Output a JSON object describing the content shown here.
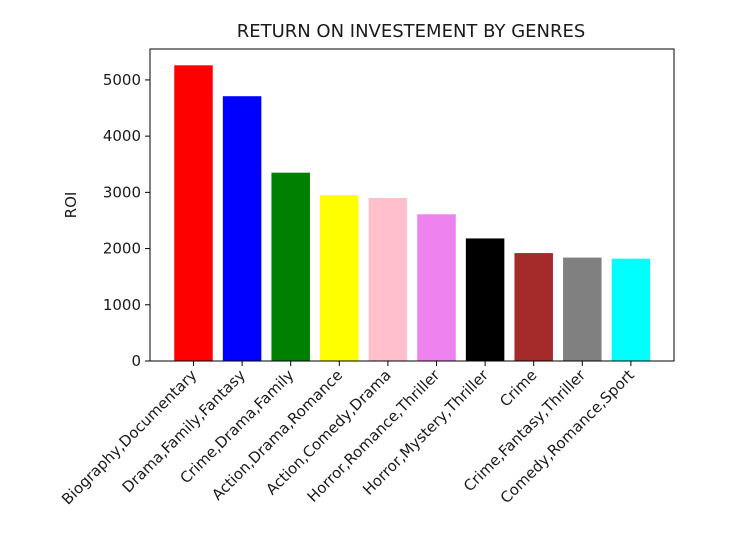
{
  "chart_data": {
    "type": "bar",
    "title": "RETURN ON INVESTEMENT BY GENRES",
    "xlabel": "",
    "ylabel": "ROI",
    "ylim": [
      0,
      5550
    ],
    "yticks": [
      0,
      1000,
      2000,
      3000,
      4000,
      5000
    ],
    "grid": false,
    "legend": "none",
    "categories": [
      "Biography,Documentary",
      "Drama,Family,Fantasy",
      "Crime,Drama,Family",
      "Action,Drama,Romance",
      "Action,Comedy,Drama",
      "Horror,Romance,Thriller",
      "Horror,Mystery,Thriller",
      "Crime",
      "Crime,Fantasy,Thriller",
      "Comedy,Romance,Sport"
    ],
    "values": [
      5260,
      4710,
      3350,
      2950,
      2900,
      2610,
      2180,
      1920,
      1840,
      1820
    ],
    "colors": [
      "#ff0000",
      "#0000ff",
      "#008000",
      "#ffff00",
      "#ffc0cb",
      "#ee82ee",
      "#000000",
      "#a52a2a",
      "#808080",
      "#00ffff"
    ]
  }
}
